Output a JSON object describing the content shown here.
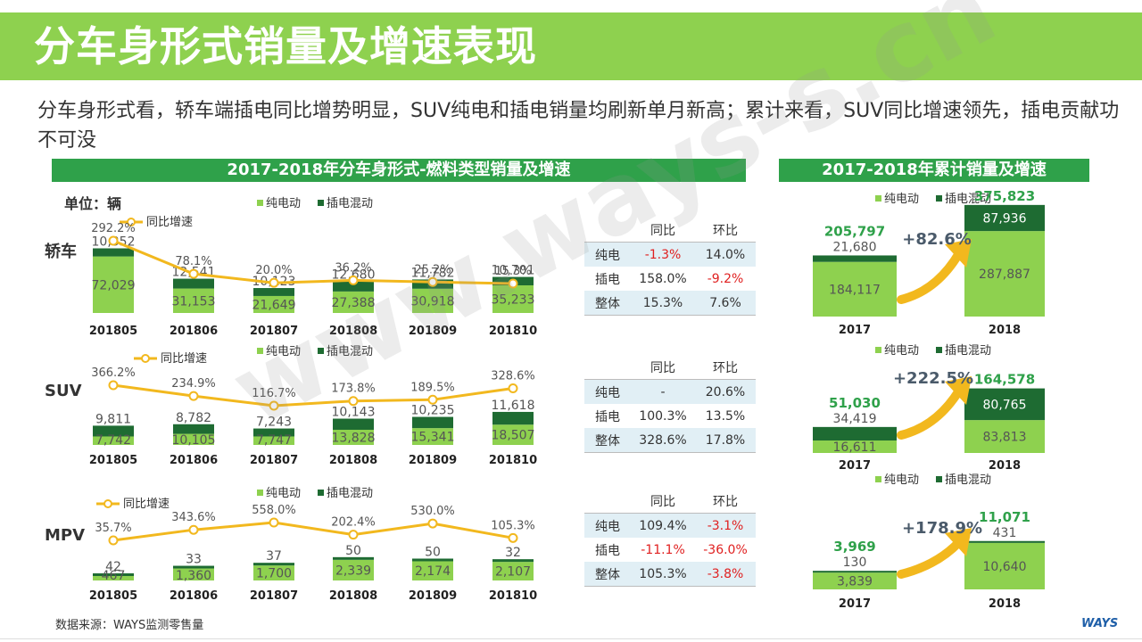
{
  "title": "分车身形式销量及增速表现",
  "summary": "分车身形式看，轿车端插电同比增势明显，SUV纯电和插电销量均刷新单月新高；累计来看，SUV同比增速领先，插电贡献功不可没",
  "left_banner": "2017-2018年分车身形式-燃料类型销量及增速",
  "right_banner": "2017-2018年累计销量及增速",
  "unit_label": "单位：辆",
  "legend": {
    "ev": "纯电动",
    "phev": "插电混动",
    "growth": "同比增速"
  },
  "table_headers": {
    "yoy": "同比",
    "mom": "环比"
  },
  "tables": [
    {
      "rows": [
        {
          "name": "纯电",
          "yoy": "-1.3%",
          "mom": "14.0%"
        },
        {
          "name": "插电",
          "yoy": "158.0%",
          "mom": "-9.2%"
        },
        {
          "name": "整体",
          "yoy": "15.3%",
          "mom": "7.6%"
        }
      ]
    },
    {
      "rows": [
        {
          "name": "纯电",
          "yoy": "-",
          "mom": "20.6%"
        },
        {
          "name": "插电",
          "yoy": "100.3%",
          "mom": "13.5%"
        },
        {
          "name": "整体",
          "yoy": "328.6%",
          "mom": "17.8%"
        }
      ]
    },
    {
      "rows": [
        {
          "name": "纯电",
          "yoy": "109.4%",
          "mom": "-3.1%"
        },
        {
          "name": "插电",
          "yoy": "-11.1%",
          "mom": "-36.0%"
        },
        {
          "name": "整体",
          "yoy": "105.3%",
          "mom": "-3.8%"
        }
      ]
    }
  ],
  "source": "数据来源：WAYS监测零售量",
  "logo": "WAYS",
  "watermark": "www.ways-s.cn",
  "colors": {
    "ev": "#8ed14f",
    "phev": "#1e6b32",
    "growth": "#f2b81e",
    "banner": "#2fa14a",
    "negative": "#e02020"
  },
  "chart_data": [
    {
      "type": "bar",
      "body_type": "轿车",
      "categories": [
        "201805",
        "201806",
        "201807",
        "201808",
        "201809",
        "201810"
      ],
      "series": [
        {
          "name": "纯电动",
          "values": [
            72029,
            31153,
            21649,
            27388,
            30918,
            35233
          ]
        },
        {
          "name": "插电混动",
          "values": [
            10352,
            12541,
            10123,
            12680,
            11782,
            10701
          ]
        },
        {
          "name": "同比增速",
          "type": "line",
          "values": [
            "292.2%",
            "78.1%",
            "20.0%",
            "36.2%",
            "25.2%",
            "15.3%"
          ]
        }
      ]
    },
    {
      "type": "bar",
      "body_type": "SUV",
      "categories": [
        "201805",
        "201806",
        "201807",
        "201808",
        "201809",
        "201810"
      ],
      "series": [
        {
          "name": "纯电动",
          "values": [
            7742,
            10105,
            7747,
            13828,
            15341,
            18507
          ]
        },
        {
          "name": "插电混动",
          "values": [
            9811,
            8782,
            7243,
            10143,
            10235,
            11618
          ]
        },
        {
          "name": "同比增速",
          "type": "line",
          "values": [
            "366.2%",
            "234.9%",
            "116.7%",
            "173.8%",
            "189.5%",
            "328.6%"
          ]
        }
      ]
    },
    {
      "type": "bar",
      "body_type": "MPV",
      "categories": [
        "201805",
        "201806",
        "201807",
        "201808",
        "201809",
        "201810"
      ],
      "series": [
        {
          "name": "纯电动",
          "values": [
            467,
            1360,
            1700,
            2339,
            2174,
            2107
          ]
        },
        {
          "name": "插电混动",
          "values": [
            42,
            33,
            37,
            50,
            50,
            32
          ]
        },
        {
          "name": "同比增速",
          "type": "line",
          "values": [
            "35.7%",
            "343.6%",
            "558.0%",
            "202.4%",
            "530.0%",
            "105.3%"
          ]
        }
      ]
    },
    {
      "type": "bar",
      "body_type": "轿车累计",
      "categories": [
        "2017",
        "2018"
      ],
      "series": [
        {
          "name": "纯电动",
          "values": [
            184117,
            287887
          ]
        },
        {
          "name": "插电混动",
          "values": [
            21680,
            87936
          ]
        }
      ],
      "totals": [
        "205,797",
        "375,823"
      ],
      "growth": "+82.6%"
    },
    {
      "type": "bar",
      "body_type": "SUV累计",
      "categories": [
        "2017",
        "2018"
      ],
      "series": [
        {
          "name": "纯电动",
          "values": [
            16611,
            83813
          ]
        },
        {
          "name": "插电混动",
          "values": [
            34419,
            80765
          ]
        }
      ],
      "totals": [
        "51,030",
        "164,578"
      ],
      "growth": "+222.5%"
    },
    {
      "type": "bar",
      "body_type": "MPV累计",
      "categories": [
        "2017",
        "2018"
      ],
      "series": [
        {
          "name": "纯电动",
          "values": [
            3839,
            10640
          ]
        },
        {
          "name": "插电混动",
          "values": [
            130,
            431
          ]
        }
      ],
      "totals": [
        "3,969",
        "11,071"
      ],
      "growth": "+178.9%"
    }
  ]
}
